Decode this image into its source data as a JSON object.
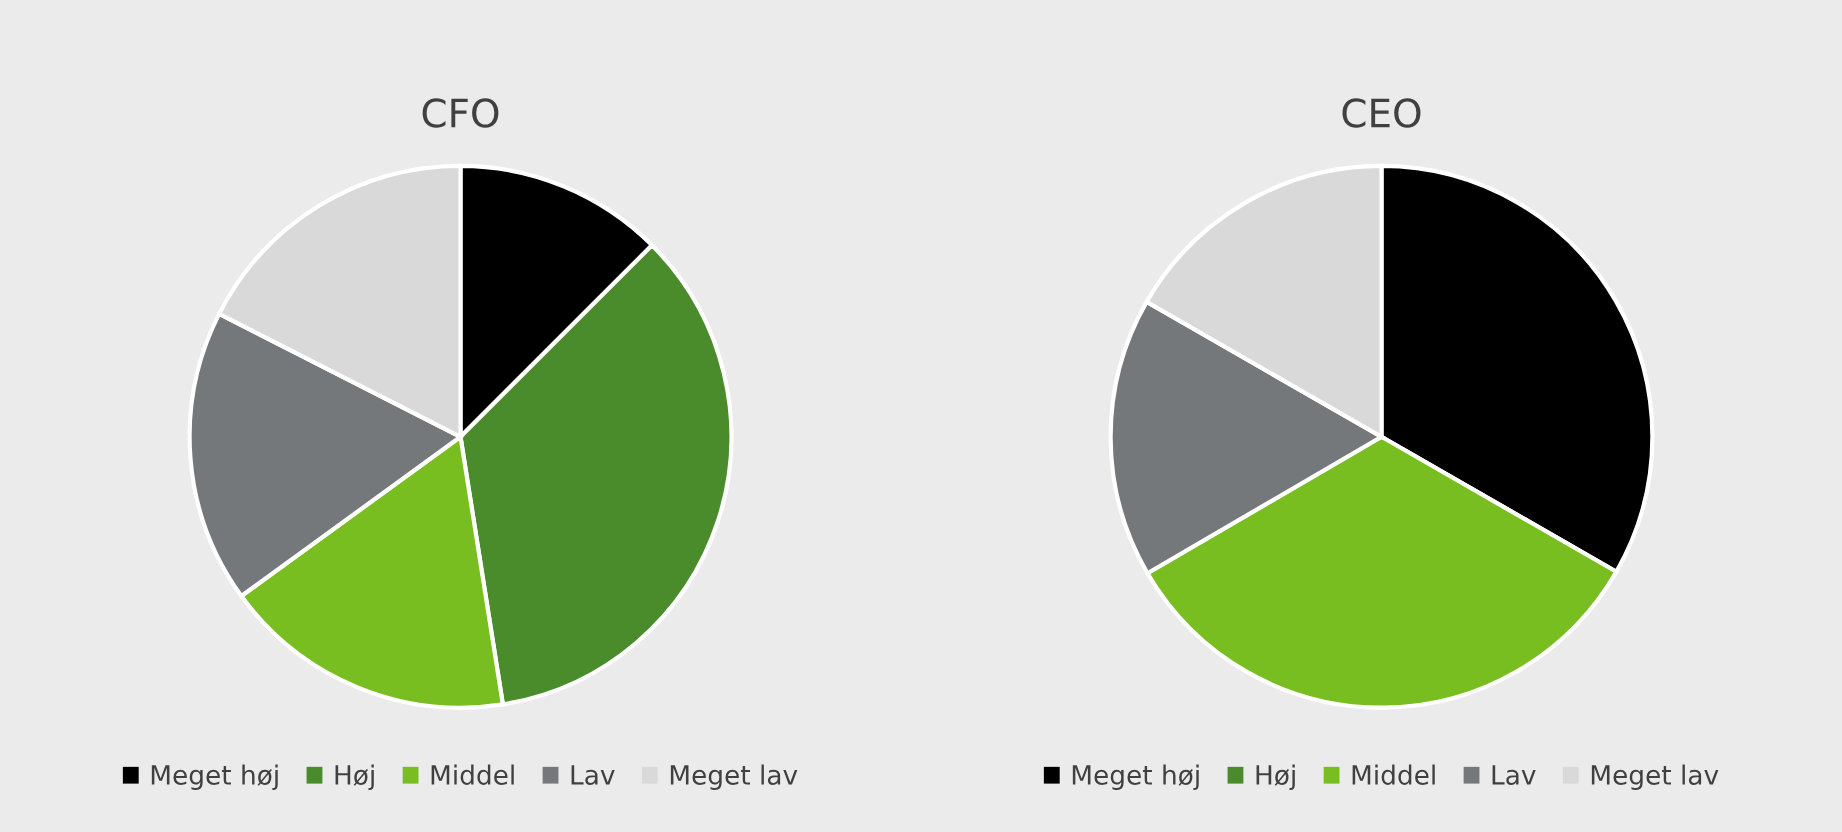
{
  "chart_data": [
    {
      "type": "pie",
      "title": "CFO",
      "categories": [
        "Meget høj",
        "Høj",
        "Middel",
        "Lav",
        "Meget lav"
      ],
      "values": [
        12.5,
        35,
        17.5,
        17.5,
        17.5
      ],
      "colors": [
        "#000000",
        "#4a8b2c",
        "#78be20",
        "#75787b",
        "#d9d9d9"
      ],
      "legend": "bottom"
    },
    {
      "type": "pie",
      "title": "CEO",
      "categories": [
        "Meget høj",
        "Høj",
        "Middel",
        "Lav",
        "Meget lav"
      ],
      "values": [
        33.3,
        0,
        33.3,
        16.7,
        16.7
      ],
      "colors": [
        "#000000",
        "#4a8b2c",
        "#78be20",
        "#75787b",
        "#d9d9d9"
      ],
      "legend": "bottom"
    }
  ]
}
